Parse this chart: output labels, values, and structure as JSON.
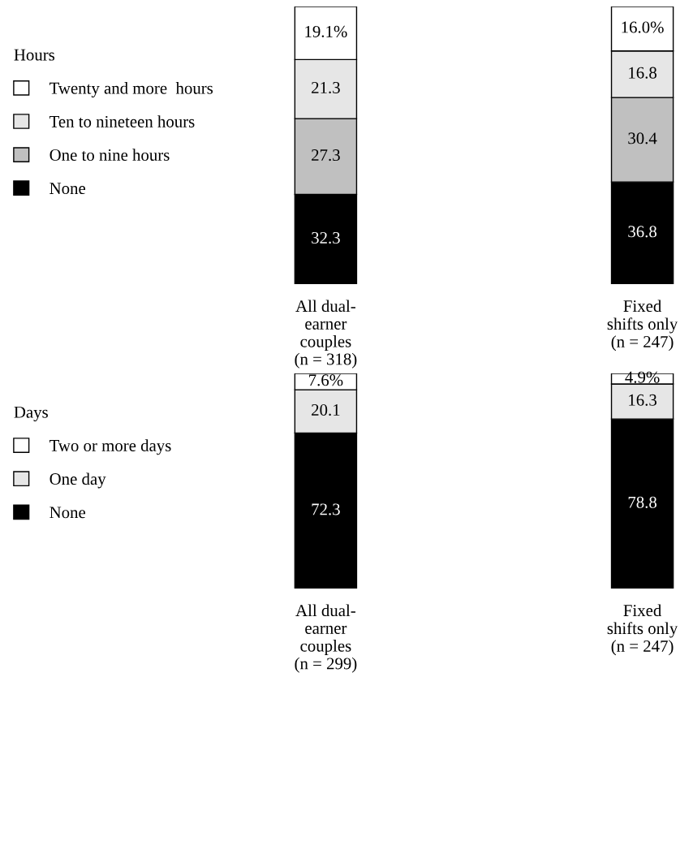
{
  "chart_data": [
    {
      "type": "bar",
      "stacked": true,
      "legend_title": "Hours",
      "legend": "left",
      "tick_labels": "x",
      "ylim": [
        0,
        100
      ],
      "categories": [
        "All dual-\nearner\ncouples\n(n = 318)",
        "Fixed\nshifts only\n(n = 247)"
      ],
      "series": [
        {
          "name": "None",
          "color": "#000000",
          "values": [
            32.3,
            36.8
          ],
          "value_labels": [
            "32.3",
            "36.8"
          ]
        },
        {
          "name": "One to nine hours",
          "color": "#c0c0c0",
          "values": [
            27.3,
            30.4
          ],
          "value_labels": [
            "27.3",
            "30.4"
          ]
        },
        {
          "name": "Ten to nineteen hours",
          "color": "#e6e6e6",
          "values": [
            21.3,
            16.8
          ],
          "value_labels": [
            "21.3",
            "16.8"
          ]
        },
        {
          "name": "Twenty and more  hours",
          "color": "#ffffff",
          "values": [
            19.1,
            16.0
          ],
          "value_labels": [
            "19.1%",
            "16.0%"
          ]
        }
      ]
    },
    {
      "type": "bar",
      "stacked": true,
      "legend_title": "Days",
      "legend": "left",
      "tick_labels": "x",
      "ylim": [
        0,
        100
      ],
      "categories": [
        "All dual-\nearner\ncouples\n(n = 299)",
        "Fixed\nshifts only\n(n = 247)"
      ],
      "series": [
        {
          "name": "None",
          "color": "#000000",
          "values": [
            72.3,
            78.8
          ],
          "value_labels": [
            "72.3",
            "78.8"
          ]
        },
        {
          "name": "One day",
          "color": "#e6e6e6",
          "values": [
            20.1,
            16.3
          ],
          "value_labels": [
            "20.1",
            "16.3"
          ]
        },
        {
          "name": "Two or more days",
          "color": "#ffffff",
          "values": [
            7.6,
            4.9
          ],
          "value_labels": [
            "7.6%",
            "4.9%"
          ]
        }
      ]
    }
  ]
}
